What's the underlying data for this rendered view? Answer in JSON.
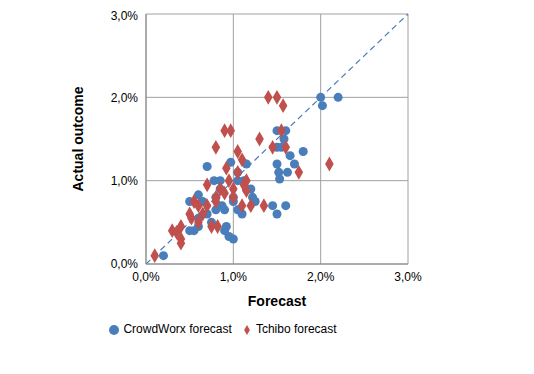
{
  "chart_data": {
    "type": "scatter",
    "x_label": "Forecast",
    "y_label": "Actual outcome",
    "xlim": [
      0,
      3
    ],
    "ylim": [
      0,
      3
    ],
    "xticks": [
      {
        "value": 0,
        "label": "0,0%"
      },
      {
        "value": 1,
        "label": "1,0%"
      },
      {
        "value": 2,
        "label": "2,0%"
      },
      {
        "value": 3,
        "label": "3,0%"
      }
    ],
    "yticks": [
      {
        "value": 0,
        "label": "0,0%"
      },
      {
        "value": 1,
        "label": "1,0%"
      },
      {
        "value": 2,
        "label": "2,0%"
      },
      {
        "value": 3,
        "label": "3,0%"
      }
    ],
    "grid": true,
    "legend": "bottom",
    "series": [
      {
        "name": "CrowdWorx forecast",
        "color": "#4a7ebb",
        "marker": "circle",
        "x": [
          0.2,
          0.5,
          0.55,
          0.5,
          0.6,
          0.6,
          0.6,
          0.7,
          0.7,
          0.75,
          0.78,
          0.8,
          0.8,
          0.85,
          0.85,
          0.87,
          0.9,
          0.9,
          0.92,
          0.95,
          0.97,
          1.0,
          1.0,
          1.0,
          1.05,
          1.05,
          1.1,
          1.12,
          1.15,
          1.15,
          1.2,
          1.22,
          1.25,
          1.45,
          1.5,
          1.5,
          1.5,
          1.5,
          1.52,
          1.53,
          1.55,
          1.58,
          1.6,
          1.6,
          1.62,
          1.65,
          1.7,
          1.8,
          2.0,
          2.02,
          2.2,
          1.05,
          0.65
        ],
        "values": [
          0.1,
          0.4,
          0.4,
          0.75,
          0.83,
          0.55,
          0.45,
          1.17,
          0.6,
          0.5,
          1.0,
          0.8,
          0.65,
          1.0,
          0.9,
          0.7,
          0.65,
          0.4,
          0.45,
          0.33,
          1.22,
          0.3,
          0.75,
          0.8,
          0.65,
          1.0,
          0.6,
          1.0,
          1.2,
          0.9,
          0.9,
          0.8,
          0.75,
          0.7,
          1.6,
          1.4,
          1.2,
          0.6,
          1.1,
          1.02,
          1.4,
          1.5,
          1.6,
          0.7,
          1.1,
          1.3,
          1.2,
          1.35,
          2.0,
          1.9,
          2.0,
          1.1,
          0.75
        ]
      },
      {
        "name": "Tchibo forecast",
        "color": "#c0504d",
        "marker": "diamond",
        "x": [
          0.1,
          0.3,
          0.35,
          0.4,
          0.4,
          0.4,
          0.5,
          0.52,
          0.55,
          0.6,
          0.6,
          0.65,
          0.7,
          0.7,
          0.75,
          0.8,
          0.8,
          0.8,
          0.82,
          0.85,
          0.9,
          0.9,
          0.92,
          0.95,
          0.97,
          1.0,
          1.0,
          1.05,
          1.05,
          1.1,
          1.1,
          1.12,
          1.15,
          1.2,
          1.3,
          1.35,
          1.4,
          1.45,
          1.5,
          1.55,
          1.57,
          1.6,
          1.75,
          2.1,
          1.15
        ],
        "values": [
          0.1,
          0.4,
          0.38,
          0.45,
          0.3,
          0.25,
          0.6,
          0.55,
          0.75,
          0.7,
          0.5,
          0.6,
          0.95,
          0.7,
          0.45,
          1.4,
          0.8,
          0.75,
          0.45,
          0.9,
          1.6,
          0.85,
          1.15,
          1.0,
          1.6,
          0.8,
          0.9,
          1.1,
          1.35,
          1.25,
          0.7,
          0.95,
          1.0,
          0.7,
          1.5,
          0.7,
          2.0,
          1.4,
          2.0,
          1.6,
          1.9,
          1.4,
          1.1,
          1.2,
          0.88
        ]
      }
    ]
  }
}
